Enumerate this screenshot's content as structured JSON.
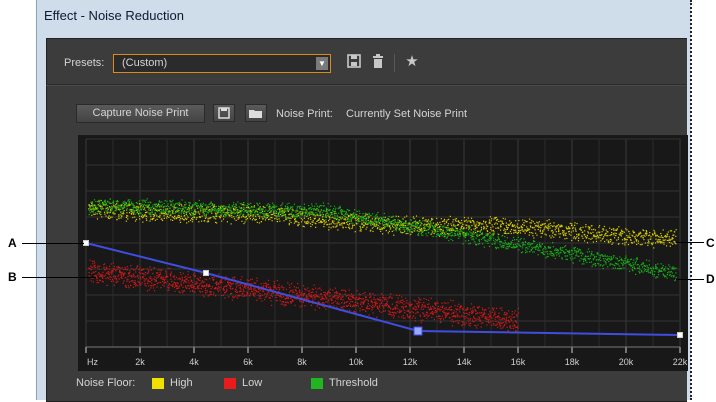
{
  "window": {
    "title": "Effect - Noise Reduction"
  },
  "presets": {
    "label": "Presets:",
    "value": "(Custom)"
  },
  "toolbar": {
    "save_icon": "save-preset-icon",
    "delete_icon": "trash-icon",
    "favorite_icon": "star-icon"
  },
  "capture": {
    "button_label": "Capture Noise Print",
    "noise_print_label": "Noise Print:",
    "noise_print_value": "Currently Set Noise Print"
  },
  "graph": {
    "x_ticks": [
      "Hz",
      "2k",
      "4k",
      "6k",
      "8k",
      "10k",
      "12k",
      "14k",
      "16k",
      "18k",
      "20k",
      "22k"
    ],
    "callouts": [
      "A",
      "B",
      "C",
      "D"
    ]
  },
  "legend": {
    "title": "Noise Floor:",
    "items": [
      {
        "label": "High",
        "color": "#f0e000"
      },
      {
        "label": "Low",
        "color": "#e81c1c"
      },
      {
        "label": "Threshold",
        "color": "#22b522"
      }
    ]
  },
  "colors": {
    "curve": "#3f4ee0",
    "high": "#d9d000",
    "low": "#d01818",
    "threshold": "#16b016",
    "panel": "#3c3c3c"
  }
}
